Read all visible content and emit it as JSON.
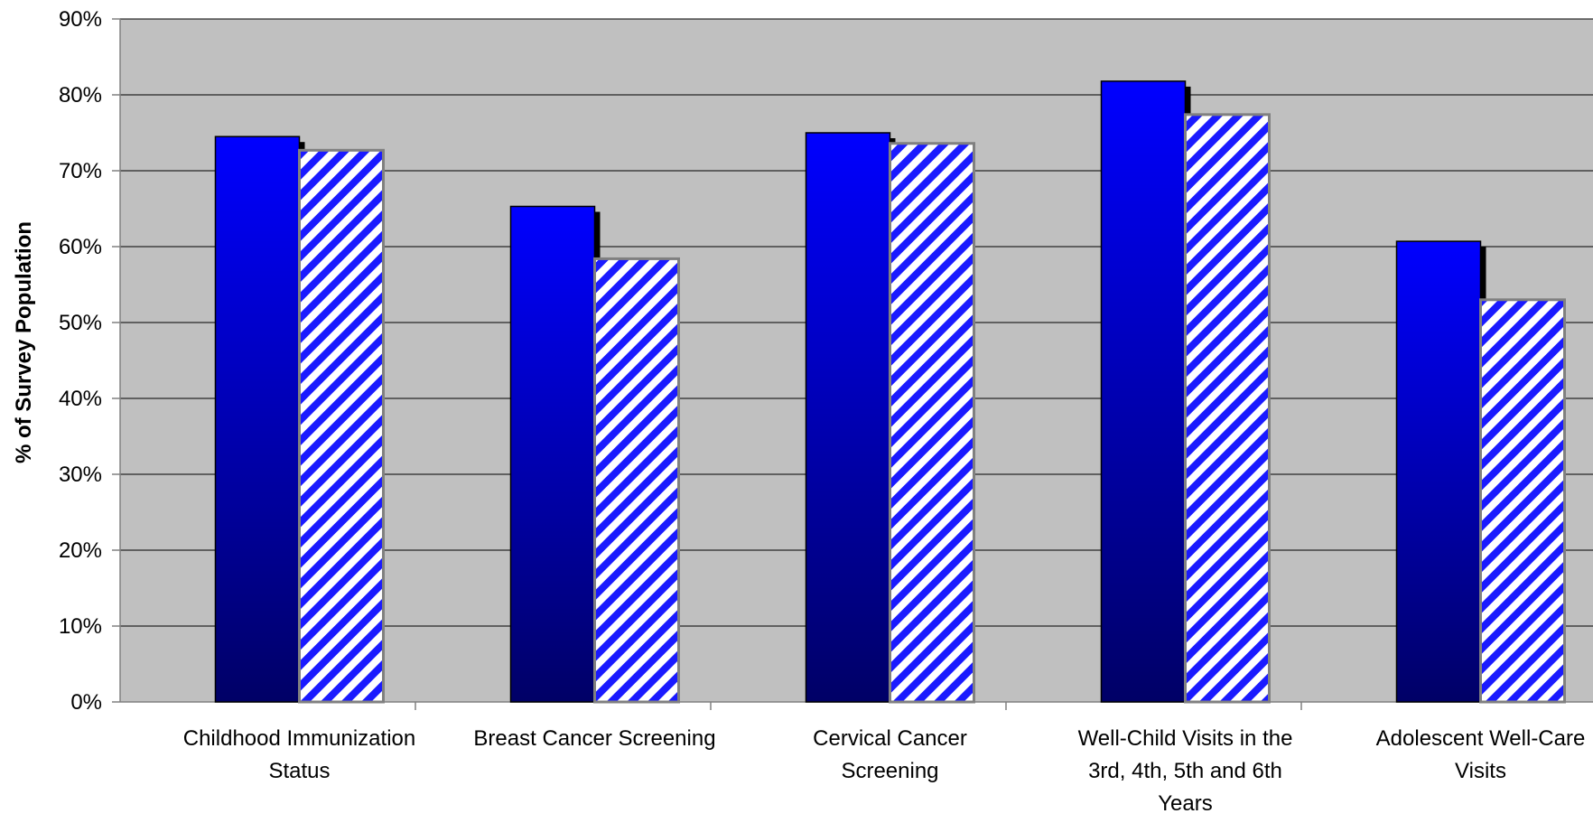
{
  "chart_data": {
    "type": "bar",
    "title": "",
    "xlabel": "",
    "ylabel": "% of Survey Population",
    "ylim": [
      0,
      90
    ],
    "yticks": [
      "0%",
      "10%",
      "20%",
      "30%",
      "40%",
      "50%",
      "60%",
      "70%",
      "80%",
      "90%"
    ],
    "grid": true,
    "legend": "none",
    "categories": [
      [
        "Childhood Immunization",
        "Status"
      ],
      [
        "Breast Cancer Screening"
      ],
      [
        "Cervical Cancer",
        "Screening"
      ],
      [
        "Well-Child Visits in the",
        "3rd, 4th, 5th and 6th",
        "Years"
      ],
      [
        "Adolescent Well-Care",
        "Visits"
      ]
    ],
    "series": [
      {
        "values": [
          74.5,
          65.3,
          75.0,
          81.8,
          60.7
        ],
        "color_top": "#0000ff",
        "color_bottom": "#000066",
        "pattern": "gradient"
      },
      {
        "values": [
          72.7,
          58.4,
          73.6,
          77.4,
          53.0
        ],
        "color": "#1a1aff",
        "pattern": "diagonal-stripes"
      }
    ],
    "colors": {
      "plot_background": "#c0c0c0",
      "gridline": "#000000",
      "axis": "#808080"
    }
  }
}
